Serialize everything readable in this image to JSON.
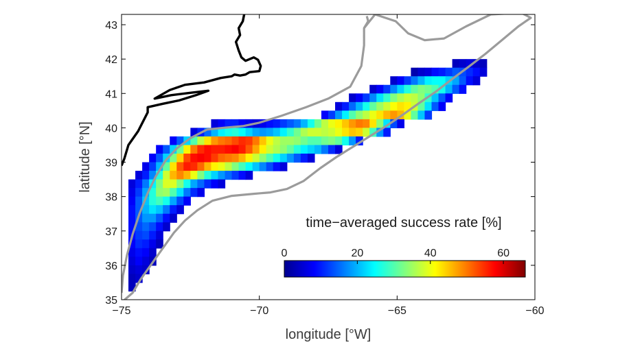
{
  "chart_data": {
    "type": "heatmap",
    "title": "",
    "xlabel": "longitude [°W]",
    "ylabel": "latitude [°N]",
    "xlim": [
      -75,
      -60
    ],
    "ylim": [
      35,
      43.3
    ],
    "x_ticks": [
      -75,
      -70,
      -65,
      -60
    ],
    "x_tick_labels": [
      "−75",
      "−70",
      "−65",
      "−60"
    ],
    "y_ticks": [
      35,
      36,
      37,
      38,
      39,
      40,
      41,
      42,
      43
    ],
    "y_tick_labels": [
      "35",
      "36",
      "37",
      "38",
      "39",
      "40",
      "41",
      "42",
      "43"
    ],
    "grid": false,
    "colorbar": {
      "label": "time−averaged success rate [%]",
      "range": [
        0,
        66
      ],
      "ticks": [
        0,
        20,
        40,
        60
      ],
      "tick_labels": [
        "0",
        "20",
        "40",
        "60"
      ],
      "colormap": "jet",
      "placement": "lower-right"
    },
    "coastline_color": "#000000",
    "domain_boundary_color": "#9b9b9b",
    "cell_size_deg": 0.25,
    "rows": [
      {
        "lat": 41.75,
        "lon_start": -63.0,
        "values": [
          4,
          5,
          6,
          5,
          4
        ]
      },
      {
        "lat": 41.5,
        "lon_start": -64.5,
        "values": [
          3,
          5,
          6,
          9,
          10,
          12,
          14,
          13,
          11,
          9,
          6
        ]
      },
      {
        "lat": 41.25,
        "lon_start": -65.25,
        "values": [
          5,
          8,
          12,
          16,
          20,
          24,
          25,
          25,
          22,
          19,
          14,
          9,
          6
        ]
      },
      {
        "lat": 41.0,
        "lon_start": -66.0,
        "values": [
          5,
          8,
          12,
          17,
          22,
          27,
          31,
          33,
          32,
          30,
          26,
          20,
          14,
          9
        ]
      },
      {
        "lat": 40.75,
        "lon_start": -66.75,
        "values": [
          5,
          8,
          12,
          17,
          23,
          28,
          33,
          36,
          38,
          37,
          34,
          28,
          21,
          14,
          8
        ]
      },
      {
        "lat": 40.5,
        "lon_start": -67.25,
        "values": [
          6,
          10,
          15,
          20,
          26,
          31,
          35,
          38,
          41,
          43,
          42,
          38,
          31,
          23,
          14,
          8
        ]
      },
      {
        "lat": 40.25,
        "lon_start": -67.75,
        "values": [
          8,
          12,
          18,
          24,
          30,
          34,
          37,
          40,
          43,
          46,
          48,
          46,
          40,
          31,
          21,
          12
        ]
      },
      {
        "lat": 40.0,
        "lon_start": -71.75,
        "values": [
          6,
          8,
          10,
          10,
          8,
          7,
          6,
          7,
          9,
          10,
          12,
          14,
          16,
          20,
          26,
          32,
          37,
          40,
          42,
          45,
          48,
          50,
          49,
          43,
          34,
          23,
          13,
          7
        ]
      },
      {
        "lat": 39.75,
        "lon_start": -72.5,
        "values": [
          6,
          10,
          15,
          20,
          24,
          26,
          27,
          25,
          22,
          19,
          18,
          19,
          21,
          24,
          28,
          32,
          36,
          38,
          38,
          37,
          38,
          40,
          43,
          45,
          44,
          38,
          29,
          18,
          10
        ]
      },
      {
        "lat": 39.5,
        "lon_start": -73.25,
        "values": [
          8,
          14,
          22,
          30,
          37,
          43,
          48,
          50,
          51,
          53,
          55,
          54,
          50,
          45,
          40,
          37,
          35,
          35,
          34,
          32,
          30,
          30,
          32,
          33,
          31,
          26,
          18,
          10
        ]
      },
      {
        "lat": 39.25,
        "lon_start": -73.75,
        "values": [
          8,
          14,
          22,
          32,
          42,
          50,
          55,
          57,
          56,
          56,
          57,
          58,
          56,
          52,
          47,
          42,
          38,
          36,
          34,
          31,
          27,
          24,
          22,
          20,
          16,
          11,
          6
        ]
      },
      {
        "lat": 39.0,
        "lon_start": -74.0,
        "values": [
          8,
          14,
          22,
          33,
          44,
          53,
          57,
          58,
          57,
          54,
          51,
          50,
          49,
          46,
          42,
          38,
          34,
          30,
          26,
          22,
          18,
          14,
          10,
          6
        ]
      },
      {
        "lat": 38.75,
        "lon_start": -74.25,
        "values": [
          7,
          12,
          20,
          31,
          43,
          52,
          56,
          55,
          51,
          46,
          42,
          40,
          37,
          33,
          29,
          25,
          21,
          17,
          13,
          9,
          6
        ]
      },
      {
        "lat": 38.5,
        "lon_start": -74.5,
        "values": [
          6,
          10,
          17,
          27,
          38,
          46,
          49,
          46,
          40,
          33,
          27,
          22,
          18,
          15,
          12,
          9,
          6
        ]
      },
      {
        "lat": 38.25,
        "lon_start": -74.75,
        "values": [
          6,
          10,
          16,
          24,
          33,
          39,
          39,
          33,
          26,
          19,
          15,
          11,
          8,
          6
        ]
      },
      {
        "lat": 38.0,
        "lon_start": -74.75,
        "values": [
          7,
          12,
          19,
          27,
          34,
          35,
          30,
          23,
          16,
          11,
          7
        ]
      },
      {
        "lat": 37.75,
        "lon_start": -74.75,
        "values": [
          8,
          14,
          21,
          27,
          29,
          26,
          19,
          13,
          8
        ]
      },
      {
        "lat": 37.5,
        "lon_start": -74.75,
        "values": [
          9,
          14,
          20,
          23,
          21,
          16,
          10,
          6
        ]
      },
      {
        "lat": 37.25,
        "lon_start": -74.75,
        "values": [
          9,
          14,
          18,
          18,
          14,
          9,
          5
        ]
      },
      {
        "lat": 37.0,
        "lon_start": -74.75,
        "values": [
          9,
          13,
          15,
          13,
          9,
          5
        ]
      },
      {
        "lat": 36.75,
        "lon_start": -74.75,
        "values": [
          9,
          12,
          13,
          10,
          6
        ]
      },
      {
        "lat": 36.5,
        "lon_start": -74.75,
        "values": [
          8,
          11,
          10,
          7,
          4
        ]
      },
      {
        "lat": 36.25,
        "lon_start": -74.75,
        "values": [
          7,
          9,
          8,
          5
        ]
      },
      {
        "lat": 36.0,
        "lon_start": -74.75,
        "values": [
          6,
          8,
          6,
          4
        ]
      },
      {
        "lat": 35.75,
        "lon_start": -74.75,
        "values": [
          5,
          6,
          5
        ]
      },
      {
        "lat": 35.5,
        "lon_start": -74.75,
        "values": [
          4,
          5
        ]
      },
      {
        "lat": 35.25,
        "lon_start": -74.75,
        "values": [
          4
        ]
      }
    ],
    "coastline": [
      [
        -75.0,
        38.9
      ],
      [
        -74.9,
        39.1
      ],
      [
        -74.75,
        39.5
      ],
      [
        -74.4,
        39.9
      ],
      [
        -74.05,
        40.45
      ],
      [
        -74.05,
        40.6
      ],
      [
        -73.5,
        40.7
      ],
      [
        -72.9,
        40.8
      ],
      [
        -72.3,
        40.95
      ],
      [
        -71.85,
        41.08
      ],
      [
        -72.5,
        41.02
      ],
      [
        -73.2,
        40.95
      ],
      [
        -73.8,
        40.85
      ],
      [
        -73.25,
        41.1
      ],
      [
        -72.7,
        41.25
      ],
      [
        -72.0,
        41.32
      ],
      [
        -71.4,
        41.45
      ],
      [
        -71.0,
        41.5
      ],
      [
        -70.9,
        41.55
      ],
      [
        -70.7,
        41.52
      ],
      [
        -70.5,
        41.55
      ],
      [
        -70.35,
        41.62
      ],
      [
        -70.0,
        41.65
      ],
      [
        -69.95,
        41.8
      ],
      [
        -70.05,
        41.98
      ],
      [
        -70.2,
        42.05
      ],
      [
        -70.5,
        41.95
      ],
      [
        -70.65,
        42.05
      ],
      [
        -70.75,
        42.25
      ],
      [
        -70.85,
        42.5
      ],
      [
        -70.7,
        42.7
      ],
      [
        -70.75,
        42.9
      ],
      [
        -70.6,
        43.1
      ],
      [
        -70.55,
        43.3
      ]
    ],
    "boundary": [
      [
        -75.0,
        34.92
      ],
      [
        -74.6,
        35.2
      ],
      [
        -74.3,
        35.6
      ],
      [
        -73.9,
        36.05
      ],
      [
        -73.5,
        36.5
      ],
      [
        -73.1,
        36.95
      ],
      [
        -72.7,
        37.3
      ],
      [
        -72.25,
        37.6
      ],
      [
        -71.7,
        37.88
      ],
      [
        -71.0,
        38.02
      ],
      [
        -70.2,
        38.08
      ],
      [
        -69.6,
        38.12
      ],
      [
        -69.0,
        38.22
      ],
      [
        -68.4,
        38.45
      ],
      [
        -67.8,
        38.82
      ],
      [
        -67.2,
        39.15
      ],
      [
        -66.6,
        39.45
      ],
      [
        -66.0,
        39.75
      ],
      [
        -65.4,
        40.05
      ],
      [
        -64.8,
        40.38
      ],
      [
        -64.2,
        40.72
      ],
      [
        -63.6,
        41.05
      ],
      [
        -63.0,
        41.42
      ],
      [
        -62.4,
        41.78
      ],
      [
        -61.8,
        42.15
      ],
      [
        -61.2,
        42.55
      ],
      [
        -60.6,
        42.95
      ],
      [
        -60.15,
        43.2
      ],
      [
        -60.5,
        43.35
      ],
      [
        -61.6,
        43.3
      ],
      [
        -62.5,
        42.95
      ],
      [
        -63.3,
        42.6
      ],
      [
        -64.0,
        42.55
      ],
      [
        -64.6,
        42.75
      ],
      [
        -65.05,
        43.1
      ],
      [
        -65.8,
        43.3
      ],
      [
        -66.2,
        42.9
      ],
      [
        -66.2,
        42.4
      ],
      [
        -66.3,
        41.8
      ],
      [
        -66.7,
        41.2
      ],
      [
        -67.5,
        40.85
      ],
      [
        -68.3,
        40.6
      ],
      [
        -69.2,
        40.35
      ],
      [
        -70.0,
        40.15
      ],
      [
        -70.6,
        40.05
      ],
      [
        -71.3,
        40.0
      ],
      [
        -71.9,
        39.95
      ],
      [
        -72.5,
        39.7
      ],
      [
        -73.0,
        39.4
      ],
      [
        -73.4,
        39.05
      ],
      [
        -73.75,
        38.6
      ],
      [
        -74.05,
        38.1
      ],
      [
        -74.35,
        37.5
      ],
      [
        -74.6,
        36.9
      ],
      [
        -74.8,
        36.3
      ],
      [
        -74.95,
        35.7
      ],
      [
        -75.0,
        35.2
      ]
    ],
    "boundary_hook": [
      [
        -66.2,
        42.9
      ],
      [
        -66.05,
        43.1
      ],
      [
        -66.1,
        43.25
      ]
    ]
  }
}
